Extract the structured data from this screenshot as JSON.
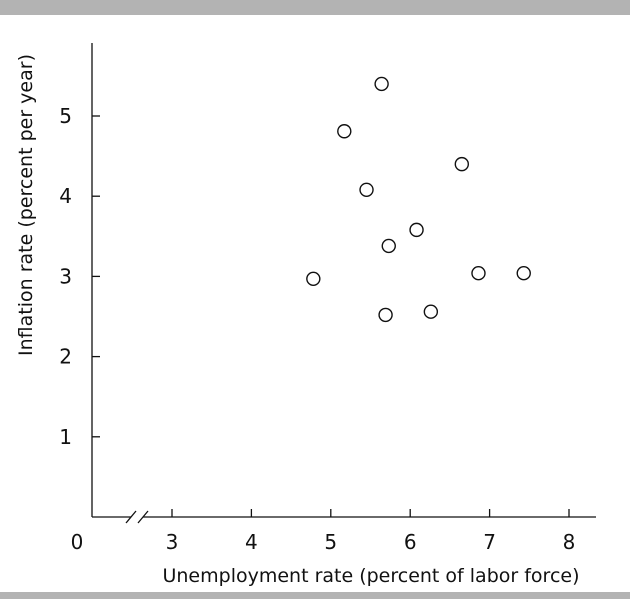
{
  "chart_data": {
    "type": "scatter",
    "title": "",
    "xlabel": "Unemployment rate (percent of labor force)",
    "ylabel": "Inflation rate (percent per year)",
    "xlim": [
      2,
      8.3
    ],
    "ylim": [
      0,
      5.85
    ],
    "x_axis_break": true,
    "origin_label": "0",
    "x_ticks": [
      3,
      4,
      5,
      6,
      7,
      8
    ],
    "y_ticks": [
      1,
      2,
      3,
      4,
      5
    ],
    "grid": false,
    "marker": "open-circle",
    "colors": {
      "axis": "#111111",
      "marker_stroke": "#111111",
      "rule": "#b3b3b3"
    },
    "points": [
      {
        "x": 4.78,
        "y": 2.97
      },
      {
        "x": 5.17,
        "y": 4.81
      },
      {
        "x": 5.45,
        "y": 4.08
      },
      {
        "x": 5.64,
        "y": 5.4
      },
      {
        "x": 5.69,
        "y": 2.52
      },
      {
        "x": 5.73,
        "y": 3.38
      },
      {
        "x": 6.08,
        "y": 3.58
      },
      {
        "x": 6.26,
        "y": 2.56
      },
      {
        "x": 6.65,
        "y": 4.4
      },
      {
        "x": 6.86,
        "y": 3.04
      },
      {
        "x": 7.43,
        "y": 3.04
      }
    ]
  }
}
